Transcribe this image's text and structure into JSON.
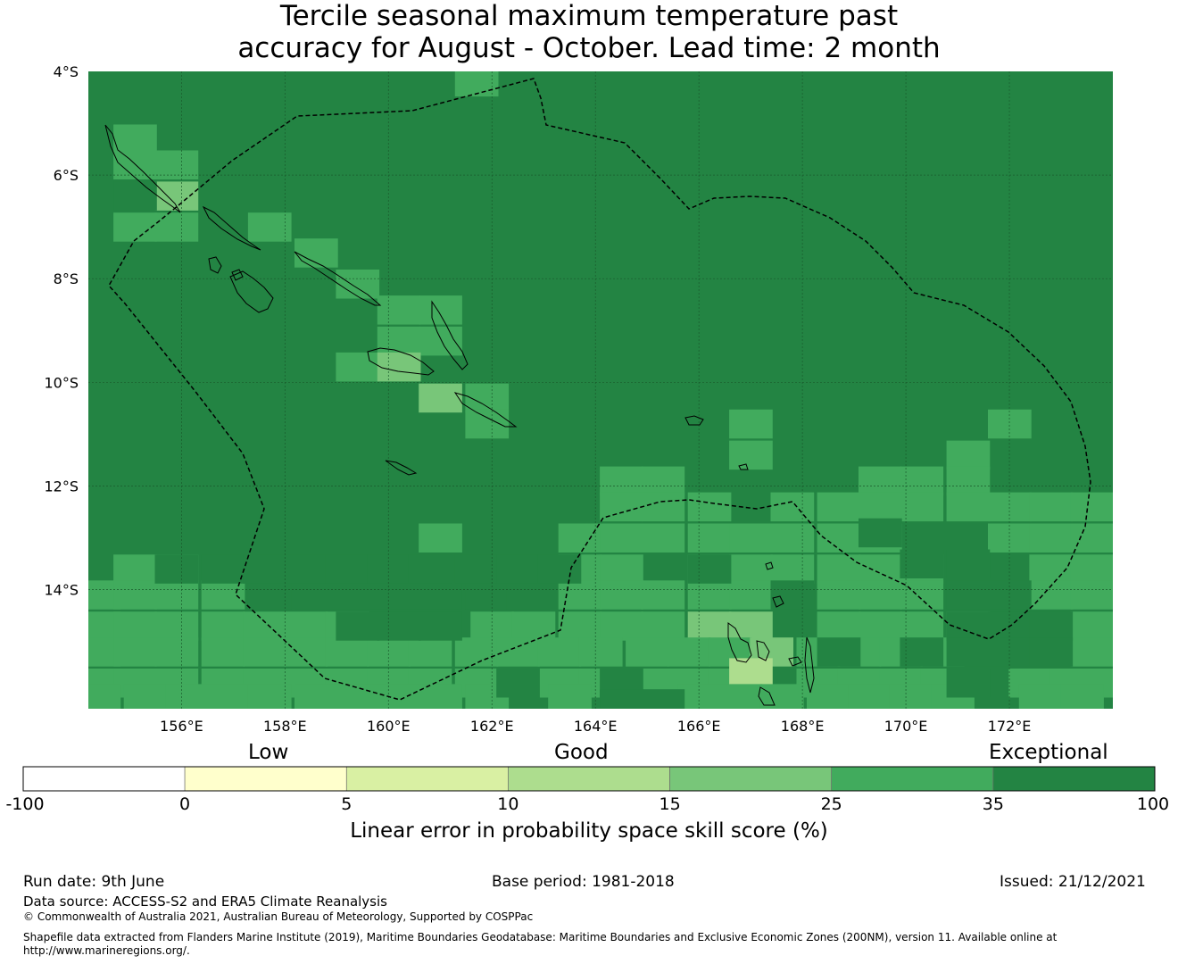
{
  "title": {
    "line1": "Tercile seasonal maximum temperature past",
    "line2": "accuracy for August - October. Lead time: 2 month"
  },
  "map": {
    "lon_range": [
      154.2,
      174.0
    ],
    "lat_range": [
      -16.3,
      -4.0
    ],
    "lat_ticks": [
      {
        "value": -4,
        "label": "4°S"
      },
      {
        "value": -6,
        "label": "6°S"
      },
      {
        "value": -8,
        "label": "8°S"
      },
      {
        "value": -10,
        "label": "10°S"
      },
      {
        "value": -12,
        "label": "12°S"
      },
      {
        "value": -14,
        "label": "14°S"
      }
    ],
    "lon_ticks": [
      {
        "value": 156,
        "label": "156°E"
      },
      {
        "value": 158,
        "label": "158°E"
      },
      {
        "value": 160,
        "label": "160°E"
      },
      {
        "value": 162,
        "label": "162°E"
      },
      {
        "value": 164,
        "label": "164°E"
      },
      {
        "value": 166,
        "label": "166°E"
      },
      {
        "value": 168,
        "label": "168°E"
      },
      {
        "value": 170,
        "label": "170°E"
      },
      {
        "value": 172,
        "label": "172°E"
      }
    ],
    "grid_lines": true,
    "cell_size_deg": [
      0.83,
      0.55
    ],
    "background_category": "35-100",
    "cells": [
      {
        "lon": 161.7,
        "lat": -4.2,
        "cat": "25-35"
      },
      {
        "lon": 155.1,
        "lat": -5.3,
        "cat": "25-35"
      },
      {
        "lon": 155.1,
        "lat": -5.8,
        "cat": "25-35"
      },
      {
        "lon": 155.9,
        "lat": -5.8,
        "cat": "25-35"
      },
      {
        "lon": 155.9,
        "lat": -6.4,
        "cat": "15-25"
      },
      {
        "lon": 155.1,
        "lat": -7.0,
        "cat": "25-35"
      },
      {
        "lon": 155.9,
        "lat": -7.0,
        "cat": "25-35"
      },
      {
        "lon": 157.7,
        "lat": -7.0,
        "cat": "25-35"
      },
      {
        "lon": 158.6,
        "lat": -7.5,
        "cat": "25-35"
      },
      {
        "lon": 159.4,
        "lat": -8.1,
        "cat": "25-35"
      },
      {
        "lon": 160.2,
        "lat": -8.6,
        "cat": "25-35"
      },
      {
        "lon": 161.0,
        "lat": -8.6,
        "cat": "25-35"
      },
      {
        "lon": 160.2,
        "lat": -9.2,
        "cat": "25-35"
      },
      {
        "lon": 161.0,
        "lat": -9.2,
        "cat": "25-35"
      },
      {
        "lon": 159.4,
        "lat": -9.7,
        "cat": "25-35"
      },
      {
        "lon": 160.2,
        "lat": -9.7,
        "cat": "15-25"
      },
      {
        "lon": 161.0,
        "lat": -10.3,
        "cat": "15-25"
      },
      {
        "lon": 161.9,
        "lat": -10.3,
        "cat": "25-35"
      },
      {
        "lon": 161.9,
        "lat": -10.8,
        "cat": "25-35"
      },
      {
        "lon": 167.0,
        "lat": -10.8,
        "cat": "25-35"
      },
      {
        "lon": 167.0,
        "lat": -11.4,
        "cat": "25-35"
      },
      {
        "lon": 172.0,
        "lat": -10.8,
        "cat": "25-35"
      },
      {
        "lon": 171.2,
        "lat": -11.4,
        "cat": "25-35"
      },
      {
        "lon": 164.5,
        "lat": -11.9,
        "cat": "25-35"
      },
      {
        "lon": 165.3,
        "lat": -11.9,
        "cat": "25-35"
      },
      {
        "lon": 166.2,
        "lat": -12.4,
        "cat": "25-35"
      },
      {
        "lon": 169.5,
        "lat": -11.9,
        "cat": "25-35"
      },
      {
        "lon": 170.3,
        "lat": -11.9,
        "cat": "25-35"
      },
      {
        "lon": 171.2,
        "lat": -11.9,
        "cat": "25-35"
      },
      {
        "lon": 164.5,
        "lat": -12.4,
        "cat": "25-35"
      },
      {
        "lon": 165.3,
        "lat": -12.4,
        "cat": "25-35"
      },
      {
        "lon": 167.8,
        "lat": -12.4,
        "cat": "25-35"
      },
      {
        "lon": 168.7,
        "lat": -12.4,
        "cat": "25-35"
      },
      {
        "lon": 169.5,
        "lat": -12.4,
        "cat": "25-35"
      },
      {
        "lon": 170.3,
        "lat": -12.4,
        "cat": "25-35"
      },
      {
        "lon": 171.2,
        "lat": -12.4,
        "cat": "25-35"
      },
      {
        "lon": 172.0,
        "lat": -12.4,
        "cat": "25-35"
      },
      {
        "lon": 172.8,
        "lat": -12.4,
        "cat": "25-35"
      },
      {
        "lon": 173.6,
        "lat": -12.4,
        "cat": "25-35"
      },
      {
        "lon": 161.0,
        "lat": -13.0,
        "cat": "25-35"
      },
      {
        "lon": 163.7,
        "lat": -13.0,
        "cat": "25-35"
      },
      {
        "lon": 164.5,
        "lat": -13.0,
        "cat": "25-35"
      },
      {
        "lon": 165.3,
        "lat": -13.0,
        "cat": "25-35"
      },
      {
        "lon": 166.2,
        "lat": -13.0,
        "cat": "25-35"
      },
      {
        "lon": 167.0,
        "lat": -13.0,
        "cat": "25-35"
      },
      {
        "lon": 167.8,
        "lat": -13.0,
        "cat": "25-35"
      },
      {
        "lon": 168.7,
        "lat": -13.0,
        "cat": "25-35"
      },
      {
        "lon": 169.5,
        "lat": -13.0,
        "cat": "25-35"
      },
      {
        "lon": 172.0,
        "lat": -13.0,
        "cat": "25-35"
      },
      {
        "lon": 172.8,
        "lat": -13.0,
        "cat": "25-35"
      },
      {
        "lon": 173.6,
        "lat": -13.0,
        "cat": "25-35"
      },
      {
        "lon": 155.1,
        "lat": -13.6,
        "cat": "25-35"
      },
      {
        "lon": 155.9,
        "lat": -13.6,
        "cat": "25-35"
      },
      {
        "lon": 163.7,
        "lat": -13.6,
        "cat": "25-35"
      },
      {
        "lon": 164.5,
        "lat": -13.6,
        "cat": "25-35"
      },
      {
        "lon": 166.2,
        "lat": -13.6,
        "cat": "25-35"
      },
      {
        "lon": 167.0,
        "lat": -13.6,
        "cat": "25-35"
      },
      {
        "lon": 167.8,
        "lat": -13.6,
        "cat": "25-35"
      },
      {
        "lon": 168.7,
        "lat": -13.6,
        "cat": "25-35"
      },
      {
        "lon": 169.5,
        "lat": -13.6,
        "cat": "25-35"
      },
      {
        "lon": 170.3,
        "lat": -13.6,
        "cat": "25-35"
      },
      {
        "lon": 172.8,
        "lat": -13.6,
        "cat": "25-35"
      },
      {
        "lon": 173.6,
        "lat": -13.6,
        "cat": "25-35"
      },
      {
        "lon": 154.4,
        "lat": -14.1,
        "cat": "25-35"
      },
      {
        "lon": 155.1,
        "lat": -14.1,
        "cat": "25-35"
      },
      {
        "lon": 155.9,
        "lat": -14.1,
        "cat": "25-35"
      },
      {
        "lon": 156.8,
        "lat": -14.1,
        "cat": "25-35"
      },
      {
        "lon": 163.7,
        "lat": -14.1,
        "cat": "25-35"
      },
      {
        "lon": 164.5,
        "lat": -14.1,
        "cat": "25-35"
      },
      {
        "lon": 165.3,
        "lat": -14.1,
        "cat": "25-35"
      },
      {
        "lon": 166.2,
        "lat": -14.1,
        "cat": "25-35"
      },
      {
        "lon": 167.0,
        "lat": -14.1,
        "cat": "25-35"
      },
      {
        "lon": 168.7,
        "lat": -14.1,
        "cat": "25-35"
      },
      {
        "lon": 169.5,
        "lat": -14.1,
        "cat": "25-35"
      },
      {
        "lon": 170.3,
        "lat": -14.1,
        "cat": "25-35"
      },
      {
        "lon": 172.8,
        "lat": -14.1,
        "cat": "25-35"
      },
      {
        "lon": 173.6,
        "lat": -14.1,
        "cat": "25-35"
      },
      {
        "lon": 154.4,
        "lat": -14.7,
        "cat": "25-35"
      },
      {
        "lon": 155.1,
        "lat": -14.7,
        "cat": "25-35"
      },
      {
        "lon": 155.9,
        "lat": -14.7,
        "cat": "25-35"
      },
      {
        "lon": 156.8,
        "lat": -14.7,
        "cat": "25-35"
      },
      {
        "lon": 157.6,
        "lat": -14.7,
        "cat": "25-35"
      },
      {
        "lon": 158.4,
        "lat": -14.7,
        "cat": "25-35"
      },
      {
        "lon": 159.2,
        "lat": -14.7,
        "cat": "25-35"
      },
      {
        "lon": 162.0,
        "lat": -14.7,
        "cat": "25-35"
      },
      {
        "lon": 162.8,
        "lat": -14.7,
        "cat": "25-35"
      },
      {
        "lon": 163.7,
        "lat": -14.7,
        "cat": "25-35"
      },
      {
        "lon": 164.5,
        "lat": -14.7,
        "cat": "25-35"
      },
      {
        "lon": 165.3,
        "lat": -14.7,
        "cat": "25-35"
      },
      {
        "lon": 166.2,
        "lat": -14.7,
        "cat": "15-25"
      },
      {
        "lon": 167.0,
        "lat": -14.7,
        "cat": "15-25"
      },
      {
        "lon": 168.7,
        "lat": -14.7,
        "cat": "25-35"
      },
      {
        "lon": 169.5,
        "lat": -14.7,
        "cat": "25-35"
      },
      {
        "lon": 170.3,
        "lat": -14.7,
        "cat": "25-35"
      },
      {
        "lon": 171.2,
        "lat": -14.7,
        "cat": "25-35"
      },
      {
        "lon": 173.6,
        "lat": -14.7,
        "cat": "25-35"
      },
      {
        "lon": 154.4,
        "lat": -15.2,
        "cat": "25-35"
      },
      {
        "lon": 155.1,
        "lat": -15.2,
        "cat": "25-35"
      },
      {
        "lon": 155.9,
        "lat": -15.2,
        "cat": "25-35"
      },
      {
        "lon": 156.8,
        "lat": -15.2,
        "cat": "25-35"
      },
      {
        "lon": 157.6,
        "lat": -15.2,
        "cat": "25-35"
      },
      {
        "lon": 158.4,
        "lat": -15.2,
        "cat": "25-35"
      },
      {
        "lon": 159.2,
        "lat": -15.2,
        "cat": "25-35"
      },
      {
        "lon": 160.0,
        "lat": -15.2,
        "cat": "25-35"
      },
      {
        "lon": 160.8,
        "lat": -15.2,
        "cat": "25-35"
      },
      {
        "lon": 161.7,
        "lat": -15.2,
        "cat": "25-35"
      },
      {
        "lon": 162.5,
        "lat": -15.2,
        "cat": "25-35"
      },
      {
        "lon": 163.3,
        "lat": -15.2,
        "cat": "25-35"
      },
      {
        "lon": 164.1,
        "lat": -15.2,
        "cat": "25-35"
      },
      {
        "lon": 165.0,
        "lat": -15.2,
        "cat": "25-35"
      },
      {
        "lon": 165.8,
        "lat": -15.2,
        "cat": "25-35"
      },
      {
        "lon": 166.6,
        "lat": -15.2,
        "cat": "25-35"
      },
      {
        "lon": 167.4,
        "lat": -15.2,
        "cat": "15-25"
      },
      {
        "lon": 168.3,
        "lat": -15.2,
        "cat": "25-35"
      },
      {
        "lon": 169.1,
        "lat": -15.2,
        "cat": "25-35"
      },
      {
        "lon": 169.9,
        "lat": -15.2,
        "cat": "25-35"
      },
      {
        "lon": 170.7,
        "lat": -15.2,
        "cat": "25-35"
      },
      {
        "lon": 173.6,
        "lat": -15.2,
        "cat": "25-35"
      },
      {
        "lon": 154.4,
        "lat": -15.8,
        "cat": "25-35"
      },
      {
        "lon": 155.1,
        "lat": -15.8,
        "cat": "25-35"
      },
      {
        "lon": 155.9,
        "lat": -15.8,
        "cat": "25-35"
      },
      {
        "lon": 156.8,
        "lat": -15.8,
        "cat": "25-35"
      },
      {
        "lon": 157.6,
        "lat": -15.8,
        "cat": "25-35"
      },
      {
        "lon": 158.4,
        "lat": -15.8,
        "cat": "25-35"
      },
      {
        "lon": 159.2,
        "lat": -15.8,
        "cat": "25-35"
      },
      {
        "lon": 160.0,
        "lat": -15.8,
        "cat": "25-35"
      },
      {
        "lon": 160.8,
        "lat": -15.8,
        "cat": "25-35"
      },
      {
        "lon": 161.7,
        "lat": -15.8,
        "cat": "25-35"
      },
      {
        "lon": 162.5,
        "lat": -15.8,
        "cat": "25-35"
      },
      {
        "lon": 163.3,
        "lat": -15.8,
        "cat": "25-35"
      },
      {
        "lon": 164.1,
        "lat": -15.8,
        "cat": "25-35"
      },
      {
        "lon": 165.0,
        "lat": -15.8,
        "cat": "25-35"
      },
      {
        "lon": 165.8,
        "lat": -15.8,
        "cat": "25-35"
      },
      {
        "lon": 166.6,
        "lat": -15.8,
        "cat": "25-35"
      },
      {
        "lon": 167.0,
        "lat": -15.6,
        "cat": "10-15"
      },
      {
        "lon": 168.3,
        "lat": -15.8,
        "cat": "25-35"
      },
      {
        "lon": 169.1,
        "lat": -15.8,
        "cat": "25-35"
      },
      {
        "lon": 169.9,
        "lat": -15.8,
        "cat": "25-35"
      },
      {
        "lon": 170.7,
        "lat": -15.8,
        "cat": "25-35"
      },
      {
        "lon": 172.4,
        "lat": -15.8,
        "cat": "25-35"
      },
      {
        "lon": 173.2,
        "lat": -15.8,
        "cat": "25-35"
      },
      {
        "lon": 174.0,
        "lat": -15.8,
        "cat": "25-35"
      },
      {
        "lon": 154.4,
        "lat": -16.1,
        "cat": "25-35"
      },
      {
        "lon": 155.3,
        "lat": -16.1,
        "cat": "25-35"
      },
      {
        "lon": 156.1,
        "lat": -16.1,
        "cat": "25-35"
      },
      {
        "lon": 156.9,
        "lat": -16.1,
        "cat": "25-35"
      },
      {
        "lon": 157.7,
        "lat": -16.1,
        "cat": "25-35"
      },
      {
        "lon": 158.6,
        "lat": -16.1,
        "cat": "25-35"
      },
      {
        "lon": 159.4,
        "lat": -16.1,
        "cat": "25-35"
      },
      {
        "lon": 160.2,
        "lat": -16.1,
        "cat": "25-35"
      },
      {
        "lon": 161.0,
        "lat": -16.1,
        "cat": "25-35"
      },
      {
        "lon": 161.9,
        "lat": -16.1,
        "cat": "25-35"
      },
      {
        "lon": 163.5,
        "lat": -16.1,
        "cat": "25-35"
      },
      {
        "lon": 166.0,
        "lat": -16.1,
        "cat": "25-35"
      },
      {
        "lon": 166.8,
        "lat": -16.1,
        "cat": "25-35"
      },
      {
        "lon": 167.6,
        "lat": -16.1,
        "cat": "25-35"
      },
      {
        "lon": 168.5,
        "lat": -16.1,
        "cat": "25-35"
      },
      {
        "lon": 169.3,
        "lat": -16.1,
        "cat": "25-35"
      },
      {
        "lon": 170.1,
        "lat": -16.1,
        "cat": "25-35"
      },
      {
        "lon": 170.9,
        "lat": -16.1,
        "cat": "25-35"
      },
      {
        "lon": 172.6,
        "lat": -16.1,
        "cat": "25-35"
      },
      {
        "lon": 173.4,
        "lat": -16.1,
        "cat": "25-35"
      }
    ],
    "dark_override_cells": [
      {
        "lon": 155.1,
        "lat": -6.4,
        "cat": "35-100"
      },
      {
        "lon": 166.2,
        "lat": -13.6,
        "cat": "35-100"
      },
      {
        "lon": 167.8,
        "lat": -14.1,
        "cat": "35-100"
      },
      {
        "lon": 168.7,
        "lat": -15.2,
        "cat": "35-100"
      },
      {
        "lon": 169.5,
        "lat": -12.9,
        "cat": "35-100"
      },
      {
        "lon": 170.3,
        "lat": -13.5,
        "cat": "35-100"
      },
      {
        "lon": 171.2,
        "lat": -13.5,
        "cat": "35-100"
      },
      {
        "lon": 171.2,
        "lat": -14.1,
        "cat": "35-100"
      },
      {
        "lon": 172.0,
        "lat": -14.1,
        "cat": "35-100"
      },
      {
        "lon": 171.2,
        "lat": -14.7,
        "cat": "35-100"
      },
      {
        "lon": 172.0,
        "lat": -14.7,
        "cat": "35-100"
      },
      {
        "lon": 172.8,
        "lat": -14.7,
        "cat": "35-100"
      },
      {
        "lon": 170.3,
        "lat": -15.2,
        "cat": "35-100"
      },
      {
        "lon": 171.2,
        "lat": -15.2,
        "cat": "35-100"
      },
      {
        "lon": 172.0,
        "lat": -15.2,
        "cat": "35-100"
      },
      {
        "lon": 172.8,
        "lat": -15.2,
        "cat": "35-100"
      },
      {
        "lon": 171.2,
        "lat": -15.8,
        "cat": "35-100"
      },
      {
        "lon": 162.5,
        "lat": -15.8,
        "cat": "35-100"
      },
      {
        "lon": 164.5,
        "lat": -15.8,
        "cat": "35-100"
      },
      {
        "lon": 164.5,
        "lat": -16.2,
        "cat": "35-100"
      },
      {
        "lon": 165.3,
        "lat": -16.2,
        "cat": "35-100"
      },
      {
        "lon": 159.4,
        "lat": -14.7,
        "cat": "35-100"
      },
      {
        "lon": 160.2,
        "lat": -14.7,
        "cat": "35-100"
      },
      {
        "lon": 161.0,
        "lat": -14.7,
        "cat": "35-100"
      },
      {
        "lon": 161.9,
        "lat": -14.1,
        "cat": "35-100"
      },
      {
        "lon": 162.7,
        "lat": -14.1,
        "cat": "35-100"
      },
      {
        "lon": 157.7,
        "lat": -14.1,
        "cat": "35-100"
      },
      {
        "lon": 158.6,
        "lat": -14.1,
        "cat": "35-100"
      },
      {
        "lon": 159.4,
        "lat": -14.1,
        "cat": "35-100"
      },
      {
        "lon": 160.2,
        "lat": -14.1,
        "cat": "35-100"
      },
      {
        "lon": 161.0,
        "lat": -14.1,
        "cat": "35-100"
      },
      {
        "lon": 155.9,
        "lat": -13.6,
        "cat": "35-100"
      },
      {
        "lon": 156.8,
        "lat": -13.6,
        "cat": "35-100"
      },
      {
        "lon": 157.6,
        "lat": -13.6,
        "cat": "35-100"
      },
      {
        "lon": 158.4,
        "lat": -13.6,
        "cat": "35-100"
      },
      {
        "lon": 159.2,
        "lat": -13.6,
        "cat": "35-100"
      },
      {
        "lon": 160.0,
        "lat": -13.6,
        "cat": "35-100"
      },
      {
        "lon": 160.8,
        "lat": -13.6,
        "cat": "35-100"
      },
      {
        "lon": 161.7,
        "lat": -13.6,
        "cat": "35-100"
      },
      {
        "lon": 162.5,
        "lat": -13.6,
        "cat": "35-100"
      },
      {
        "lon": 163.3,
        "lat": -13.6,
        "cat": "35-100"
      }
    ],
    "category_colors": {
      "-100-0": "#ffffff",
      "0-5": "#ffffcc",
      "5-10": "#d9f0a3",
      "10-15": "#addd8e",
      "15-25": "#78c679",
      "25-35": "#41ab5d",
      "35-100": "#238443"
    }
  },
  "colorbar": {
    "words": [
      "Low",
      "Good",
      "Exceptional"
    ],
    "ticks": [
      "-100",
      "0",
      "5",
      "10",
      "15",
      "25",
      "35",
      "100"
    ],
    "colors": [
      "#ffffff",
      "#ffffcc",
      "#d9f0a3",
      "#addd8e",
      "#78c679",
      "#41ab5d",
      "#238443"
    ],
    "caption": "Linear error in probability space skill score (%)"
  },
  "footer": {
    "run_date": "Run date: 9th June",
    "base_period": "Base period: 1981-2018",
    "issued": "Issued: 21/12/2021",
    "data_source": "Data source: ACCESS-S2 and ERA5 Climate Reanalysis",
    "copyright": "© Commonwealth of Australia 2021, Australian Bureau of Meteorology, Supported by COSPPac",
    "shapefile_line1": "Shapefile data extracted from Flanders Marine Institute (2019), Maritime Boundaries Geodatabase: Maritime Boundaries and Exclusive Economic Zones (200NM), version 11. Available online at",
    "shapefile_line2": "http://www.marineregions.org/."
  }
}
